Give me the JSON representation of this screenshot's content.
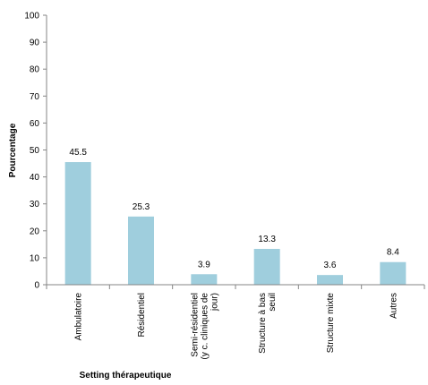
{
  "chart_data": {
    "type": "bar",
    "title": "",
    "xlabel": "Setting thérapeutique",
    "ylabel": "Pourcentage",
    "ylim": [
      0,
      100
    ],
    "yticks": [
      0,
      10,
      20,
      30,
      40,
      50,
      60,
      70,
      80,
      90,
      100
    ],
    "grid": false,
    "bar_color": "#9fcedd",
    "categories": [
      [
        "Ambulatoire"
      ],
      [
        "Résidentiel"
      ],
      [
        "Semi-résidentiel",
        "(y c. cliniques de",
        "jour)"
      ],
      [
        "Structure à bas",
        "seuil"
      ],
      [
        "Structure mixte"
      ],
      [
        "Autres"
      ]
    ],
    "values": [
      45.5,
      25.3,
      3.9,
      13.3,
      3.6,
      8.4
    ],
    "data_labels": [
      "45.5",
      "25.3",
      "3.9",
      "13.3",
      "3.6",
      "8.4"
    ]
  }
}
